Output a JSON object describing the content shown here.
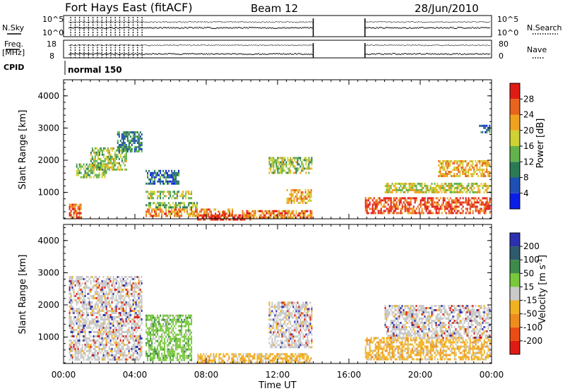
{
  "header": {
    "station": "Fort Hays East (fitACF)",
    "beam": "Beam 12",
    "date": "28/Jun/2010"
  },
  "summary": {
    "nsky_label": "N.Sky",
    "nsky_ticks": [
      "10^5",
      "10^0"
    ],
    "nsearch_label": "N.Search",
    "nsearch_ticks": [
      "10^5",
      "10^0"
    ],
    "freq_label": "Freq.",
    "freq_unit": "[MHz]",
    "freq_ticks": [
      "18",
      "8"
    ],
    "nave_label": "Nave",
    "nave_ticks": [
      "80",
      "0"
    ],
    "cpid_label": "CPID",
    "cpid_value": "normal 150"
  },
  "chart_data": [
    {
      "type": "heatmap",
      "name": "power",
      "ylabel": "Slant Range [km]",
      "xlabel": "",
      "xlim_hours": [
        0,
        24
      ],
      "ylim_km": [
        180,
        4500
      ],
      "y_ticks": [
        "1000",
        "2000",
        "3000",
        "4000"
      ],
      "colorbar_label": "Power [dB]",
      "colorbar_ticks": [
        "4",
        "8",
        "12",
        "16",
        "20",
        "24",
        "28"
      ],
      "colorbar_range": [
        0,
        32
      ],
      "colors": [
        "#0b1ee6",
        "#1e4fb4",
        "#2a7a55",
        "#63b24c",
        "#cfd134",
        "#f0a21f",
        "#e9641c",
        "#e01b14"
      ],
      "data_gap_hours": [
        [
          14.0,
          16.9
        ]
      ],
      "echo_regions": [
        {
          "t": [
            0.3,
            1.0
          ],
          "r": [
            250,
            650
          ],
          "level": 24
        },
        {
          "t": [
            0.7,
            2.5
          ],
          "r": [
            1500,
            1900
          ],
          "level": 12
        },
        {
          "t": [
            1.5,
            3.5
          ],
          "r": [
            1700,
            2400
          ],
          "level": 14
        },
        {
          "t": [
            3.0,
            4.4
          ],
          "r": [
            2300,
            2900
          ],
          "level": 8
        },
        {
          "t": [
            4.6,
            6.5
          ],
          "r": [
            1300,
            1700
          ],
          "level": 6
        },
        {
          "t": [
            4.6,
            7.2
          ],
          "r": [
            850,
            1050
          ],
          "level": 14
        },
        {
          "t": [
            4.6,
            7.5
          ],
          "r": [
            550,
            700
          ],
          "level": 12
        },
        {
          "t": [
            4.6,
            9.5
          ],
          "r": [
            250,
            500
          ],
          "level": 22
        },
        {
          "t": [
            7.5,
            10.5
          ],
          "r": [
            180,
            320
          ],
          "level": 28
        },
        {
          "t": [
            10.0,
            13.9
          ],
          "r": [
            250,
            450
          ],
          "level": 22
        },
        {
          "t": [
            11.5,
            13.9
          ],
          "r": [
            1600,
            2100
          ],
          "level": 14
        },
        {
          "t": [
            12.5,
            13.9
          ],
          "r": [
            700,
            1100
          ],
          "level": 20
        },
        {
          "t": [
            16.9,
            23.9
          ],
          "r": [
            350,
            850
          ],
          "level": 26
        },
        {
          "t": [
            18.0,
            23.9
          ],
          "r": [
            1000,
            1300
          ],
          "level": 16
        },
        {
          "t": [
            21.0,
            23.9
          ],
          "r": [
            1500,
            2000
          ],
          "level": 20
        },
        {
          "t": [
            23.3,
            23.9
          ],
          "r": [
            2900,
            3100
          ],
          "level": 6
        }
      ]
    },
    {
      "type": "heatmap",
      "name": "velocity",
      "ylabel": "Slant Range [km]",
      "xlabel": "Time UT",
      "xlim_hours": [
        0,
        24
      ],
      "ylim_km": [
        180,
        4500
      ],
      "x_ticks": [
        "00:00",
        "04:00",
        "08:00",
        "12:00",
        "16:00",
        "20:00",
        "00:00"
      ],
      "y_ticks": [
        "1000",
        "2000",
        "3000",
        "4000"
      ],
      "colorbar_label": "Velocity [m s^-1]",
      "colorbar_ticks": [
        "200",
        "100",
        "50",
        "15",
        "-15",
        "-50",
        "-100",
        "-200"
      ],
      "colors": [
        "#2c30b0",
        "#2d5a6c",
        "#3d8a4a",
        "#78c83a",
        "#c9c9c9",
        "#f0b21f",
        "#f08c1c",
        "#ea4d14",
        "#e01b14"
      ],
      "echo_regions": [
        {
          "t": [
            0.3,
            4.4
          ],
          "r": [
            300,
            2900
          ],
          "vel": 0
        },
        {
          "t": [
            4.6,
            7.2
          ],
          "r": [
            300,
            1700
          ],
          "vel": 60
        },
        {
          "t": [
            7.5,
            13.9
          ],
          "r": [
            180,
            500
          ],
          "vel": -40
        },
        {
          "t": [
            11.5,
            13.9
          ],
          "r": [
            700,
            2100
          ],
          "vel": 0
        },
        {
          "t": [
            16.9,
            23.9
          ],
          "r": [
            300,
            1000
          ],
          "vel": -60
        },
        {
          "t": [
            18.0,
            23.9
          ],
          "r": [
            1000,
            2000
          ],
          "vel": 0
        }
      ]
    }
  ]
}
